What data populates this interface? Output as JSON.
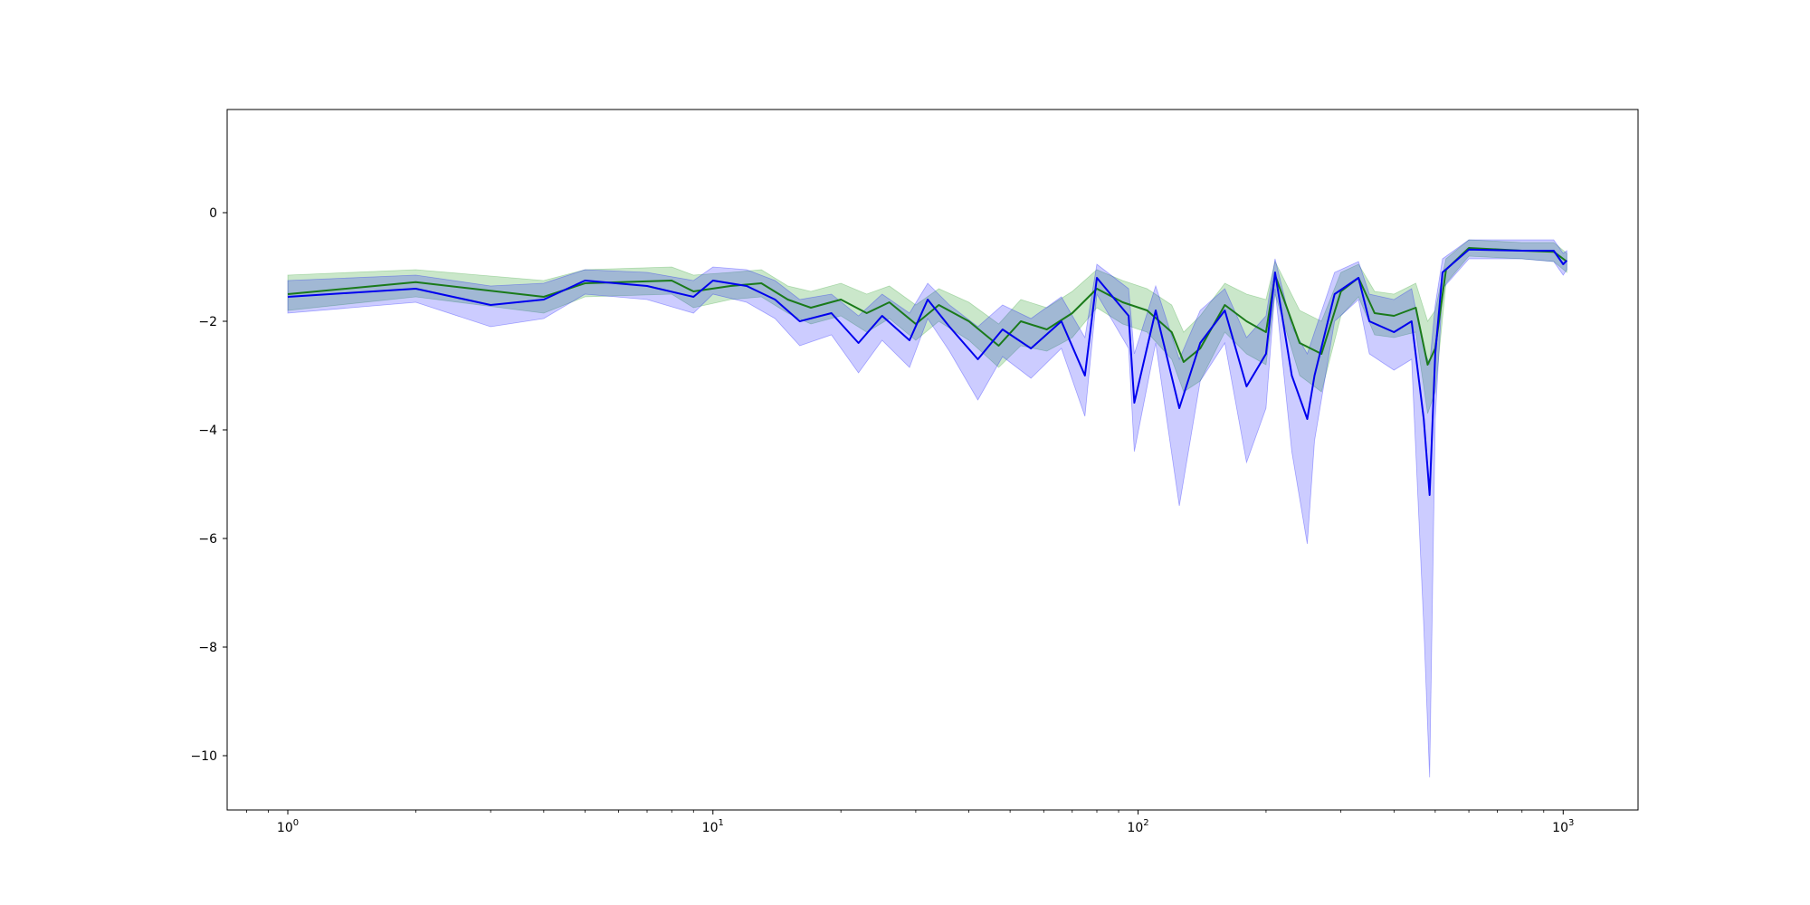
{
  "chart_data": {
    "type": "line",
    "xscale": "log",
    "xlim": [
      0.72,
      1500
    ],
    "ylim": [
      -11,
      1.9
    ],
    "grid": false,
    "legend": "none",
    "title": "",
    "xlabel": "",
    "ylabel": "",
    "x_ticks": [
      {
        "value": 1,
        "label": "10",
        "exp": "0"
      },
      {
        "value": 10,
        "label": "10",
        "exp": "1"
      },
      {
        "value": 100,
        "label": "10",
        "exp": "2"
      },
      {
        "value": 1000,
        "label": "10",
        "exp": "3"
      }
    ],
    "y_ticks": [
      {
        "value": 0,
        "label": "0"
      },
      {
        "value": -2,
        "label": "−2"
      },
      {
        "value": -4,
        "label": "−4"
      },
      {
        "value": -6,
        "label": "−6"
      },
      {
        "value": -8,
        "label": "−8"
      },
      {
        "value": -10,
        "label": "−10"
      }
    ],
    "series": [
      {
        "color": "#1a7a1a",
        "band_color": "#2ca02c",
        "band_opacity": 0.25,
        "points": [
          [
            1,
            -1.5,
            -1.15,
            -1.8
          ],
          [
            2,
            -1.28,
            -1.05,
            -1.55
          ],
          [
            4,
            -1.55,
            -1.25,
            -1.85
          ],
          [
            5,
            -1.3,
            -1.05,
            -1.55
          ],
          [
            8,
            -1.25,
            -1.0,
            -1.5
          ],
          [
            9,
            -1.45,
            -1.15,
            -1.75
          ],
          [
            11,
            -1.35,
            -1.1,
            -1.6
          ],
          [
            13,
            -1.3,
            -1.05,
            -1.55
          ],
          [
            15,
            -1.6,
            -1.35,
            -1.85
          ],
          [
            17,
            -1.75,
            -1.45,
            -2.05
          ],
          [
            20,
            -1.6,
            -1.3,
            -1.9
          ],
          [
            23,
            -1.85,
            -1.5,
            -2.2
          ],
          [
            26,
            -1.65,
            -1.35,
            -1.95
          ],
          [
            30,
            -2.05,
            -1.7,
            -2.35
          ],
          [
            34,
            -1.7,
            -1.4,
            -2.0
          ],
          [
            40,
            -2.0,
            -1.65,
            -2.35
          ],
          [
            47,
            -2.45,
            -2.05,
            -2.85
          ],
          [
            53,
            -2.0,
            -1.6,
            -2.45
          ],
          [
            61,
            -2.15,
            -1.75,
            -2.55
          ],
          [
            70,
            -1.85,
            -1.45,
            -2.3
          ],
          [
            80,
            -1.4,
            -1.05,
            -1.75
          ],
          [
            92,
            -1.65,
            -1.25,
            -2.05
          ],
          [
            105,
            -1.8,
            -1.4,
            -2.2
          ],
          [
            120,
            -2.2,
            -1.7,
            -2.7
          ],
          [
            128,
            -2.75,
            -2.2,
            -3.3
          ],
          [
            140,
            -2.5,
            -1.9,
            -3.1
          ],
          [
            160,
            -1.7,
            -1.3,
            -2.2
          ],
          [
            180,
            -2.0,
            -1.5,
            -2.6
          ],
          [
            200,
            -2.2,
            -1.6,
            -2.8
          ],
          [
            210,
            -1.15,
            -0.9,
            -1.5
          ],
          [
            240,
            -2.4,
            -1.8,
            -3.0
          ],
          [
            270,
            -2.6,
            -2.0,
            -3.3
          ],
          [
            300,
            -1.45,
            -1.1,
            -1.9
          ],
          [
            330,
            -1.2,
            -0.95,
            -1.55
          ],
          [
            360,
            -1.85,
            -1.45,
            -2.25
          ],
          [
            400,
            -1.9,
            -1.5,
            -2.3
          ],
          [
            450,
            -1.75,
            -1.3,
            -2.2
          ],
          [
            480,
            -2.8,
            -2.0,
            -3.7
          ],
          [
            500,
            -2.5,
            -1.8,
            -3.3
          ],
          [
            530,
            -1.05,
            -0.85,
            -1.3
          ],
          [
            600,
            -0.65,
            -0.5,
            -0.8
          ],
          [
            800,
            -0.7,
            -0.55,
            -0.85
          ],
          [
            950,
            -0.72,
            -0.55,
            -0.9
          ],
          [
            1020,
            -0.9,
            -0.75,
            -1.1
          ]
        ]
      },
      {
        "color": "#0000ee",
        "band_color": "#0000ff",
        "band_opacity": 0.2,
        "points": [
          [
            1,
            -1.55,
            -1.25,
            -1.85
          ],
          [
            2,
            -1.4,
            -1.15,
            -1.65
          ],
          [
            3,
            -1.7,
            -1.35,
            -2.1
          ],
          [
            4,
            -1.6,
            -1.3,
            -1.95
          ],
          [
            5,
            -1.25,
            -1.05,
            -1.5
          ],
          [
            7,
            -1.35,
            -1.1,
            -1.6
          ],
          [
            9,
            -1.55,
            -1.25,
            -1.85
          ],
          [
            10,
            -1.25,
            -1.0,
            -1.5
          ],
          [
            12,
            -1.35,
            -1.05,
            -1.65
          ],
          [
            14,
            -1.6,
            -1.25,
            -1.95
          ],
          [
            16,
            -2.0,
            -1.6,
            -2.45
          ],
          [
            19,
            -1.85,
            -1.5,
            -2.25
          ],
          [
            22,
            -2.4,
            -1.9,
            -2.95
          ],
          [
            25,
            -1.9,
            -1.5,
            -2.35
          ],
          [
            29,
            -2.35,
            -1.85,
            -2.85
          ],
          [
            32,
            -1.6,
            -1.3,
            -1.95
          ],
          [
            36,
            -2.1,
            -1.7,
            -2.55
          ],
          [
            42,
            -2.7,
            -2.1,
            -3.45
          ],
          [
            48,
            -2.15,
            -1.7,
            -2.65
          ],
          [
            56,
            -2.5,
            -1.95,
            -3.05
          ],
          [
            66,
            -2.0,
            -1.55,
            -2.5
          ],
          [
            75,
            -3.0,
            -2.3,
            -3.75
          ],
          [
            80,
            -1.2,
            -0.95,
            -1.5
          ],
          [
            95,
            -1.9,
            -1.4,
            -2.5
          ],
          [
            98,
            -3.5,
            -2.6,
            -4.4
          ],
          [
            110,
            -1.8,
            -1.35,
            -2.4
          ],
          [
            125,
            -3.6,
            -2.7,
            -5.4
          ],
          [
            140,
            -2.4,
            -1.8,
            -3.1
          ],
          [
            160,
            -1.8,
            -1.4,
            -2.4
          ],
          [
            180,
            -3.2,
            -2.3,
            -4.6
          ],
          [
            200,
            -2.6,
            -1.9,
            -3.6
          ],
          [
            210,
            -1.1,
            -0.85,
            -1.4
          ],
          [
            230,
            -3.0,
            -2.1,
            -4.4
          ],
          [
            250,
            -3.8,
            -2.6,
            -6.1
          ],
          [
            260,
            -3.0,
            -2.2,
            -4.2
          ],
          [
            290,
            -1.5,
            -1.1,
            -2.0
          ],
          [
            330,
            -1.2,
            -0.9,
            -1.6
          ],
          [
            350,
            -2.0,
            -1.5,
            -2.6
          ],
          [
            400,
            -2.2,
            -1.6,
            -2.9
          ],
          [
            440,
            -2.0,
            -1.4,
            -2.7
          ],
          [
            470,
            -3.8,
            -2.5,
            -7.6
          ],
          [
            485,
            -5.2,
            -2.8,
            -10.4
          ],
          [
            500,
            -2.6,
            -1.7,
            -3.8
          ],
          [
            520,
            -1.1,
            -0.85,
            -1.4
          ],
          [
            600,
            -0.68,
            -0.5,
            -0.85
          ],
          [
            800,
            -0.7,
            -0.5,
            -0.85
          ],
          [
            950,
            -0.7,
            -0.5,
            -0.9
          ],
          [
            1000,
            -0.95,
            -0.75,
            -1.15
          ],
          [
            1020,
            -0.88,
            -0.7,
            -1.05
          ]
        ]
      }
    ]
  }
}
